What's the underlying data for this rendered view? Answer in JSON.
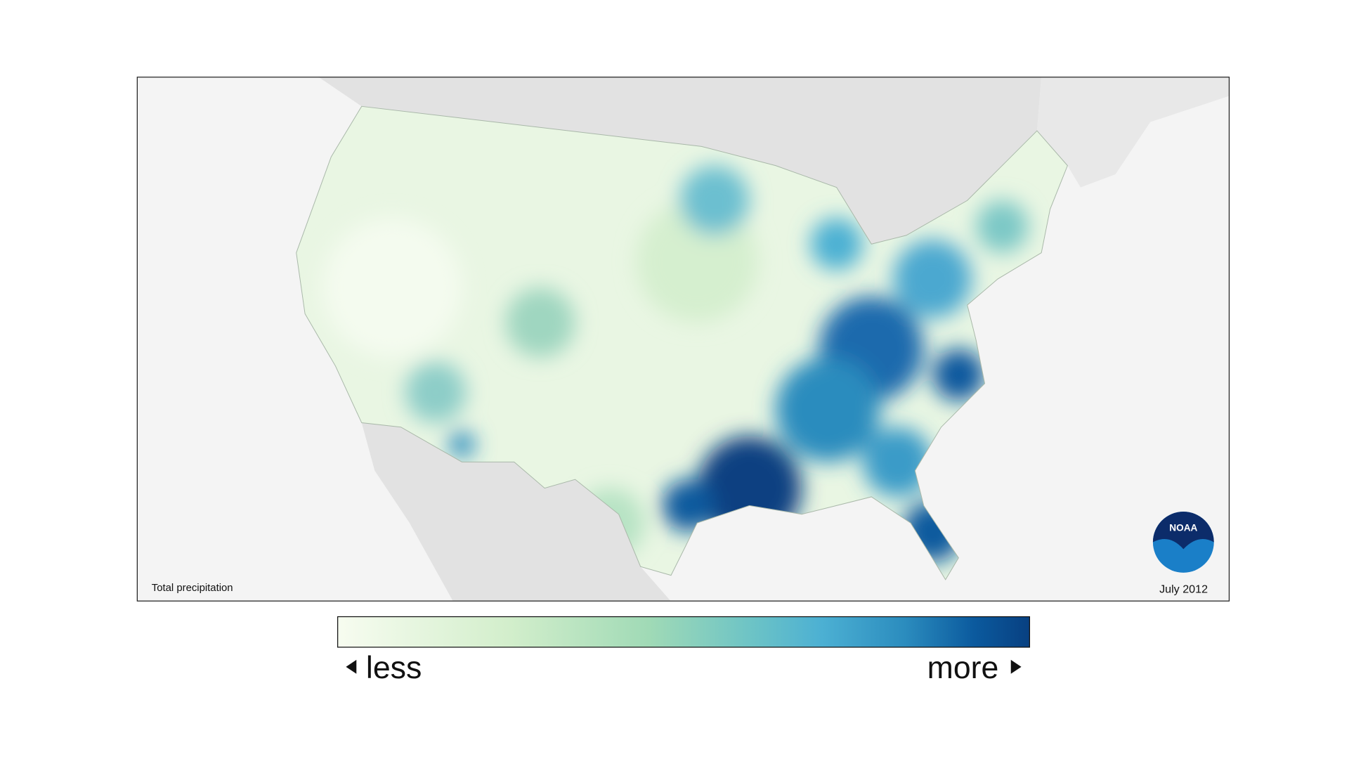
{
  "map": {
    "label": "Total precipitation",
    "date": "July 2012",
    "logo": "NOAA"
  },
  "legend": {
    "low": "less",
    "high": "more"
  }
}
